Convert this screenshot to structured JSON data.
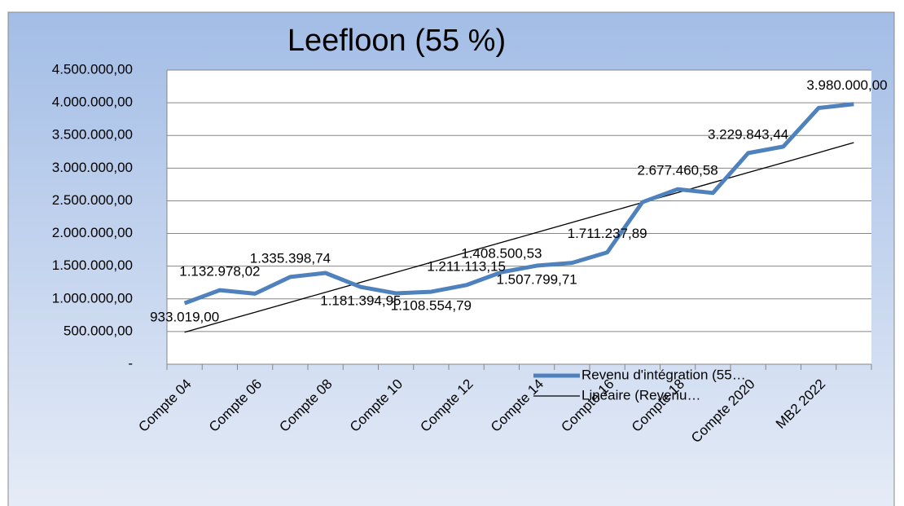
{
  "chart_data": {
    "type": "line",
    "title": "Leefloon (55 %)",
    "categories": [
      "Compte 04",
      null,
      "Compte 06",
      null,
      "Compte 08",
      null,
      "Compte 10",
      null,
      "Compte 12",
      null,
      "Compte 14",
      null,
      "Compte 16",
      null,
      "Compte 18",
      null,
      "Compte 2020",
      null,
      "MB2 2022",
      null
    ],
    "series": [
      {
        "name": "Revenu d'intégration (55…",
        "color": "#4f81bd",
        "values": [
          933019,
          1132978.02,
          1080000,
          1335398.74,
          1396000,
          1181394.95,
          1085000,
          1108554.79,
          1211113.15,
          1408500.53,
          1507799.71,
          1550000,
          1711237.89,
          2480000,
          2677460.58,
          2620000,
          3229843.44,
          3330000,
          3920000,
          3980000
        ],
        "value_labels": [
          "933.019,00",
          "1.132.978,02",
          null,
          "1.335.398,74",
          null,
          "1.181.394,95",
          null,
          "1.108.554,79",
          "1.211.113,15",
          "1.408.500,53",
          "1.507.799,71",
          null,
          "1.711.237,89",
          null,
          "2.677.460,58",
          null,
          "3.229.843,44",
          null,
          null,
          "3.980.000,00"
        ]
      },
      {
        "name": "Linéaire (Revenu…",
        "color": "#000000",
        "values": [
          490000,
          643000,
          795000,
          948000,
          1100000,
          1253000,
          1406000,
          1558000,
          1711000,
          1863000,
          2016000,
          2169000,
          2321000,
          2474000,
          2626000,
          2779000,
          2932000,
          3084000,
          3237000,
          3390000
        ]
      }
    ],
    "ylim": [
      0,
      4500000
    ],
    "yticks": [
      {
        "value": 0,
        "label": "-"
      },
      {
        "value": 500000,
        "label": "500.000,00"
      },
      {
        "value": 1000000,
        "label": "1.000.000,00"
      },
      {
        "value": 1500000,
        "label": "1.500.000,00"
      },
      {
        "value": 2000000,
        "label": "2.000.000,00"
      },
      {
        "value": 2500000,
        "label": "2.500.000,00"
      },
      {
        "value": 3000000,
        "label": "3.000.000,00"
      },
      {
        "value": 3500000,
        "label": "3.500.000,00"
      },
      {
        "value": 4000000,
        "label": "4.000.000,00"
      },
      {
        "value": 4500000,
        "label": "4.500.000,00"
      }
    ],
    "grid": true
  }
}
